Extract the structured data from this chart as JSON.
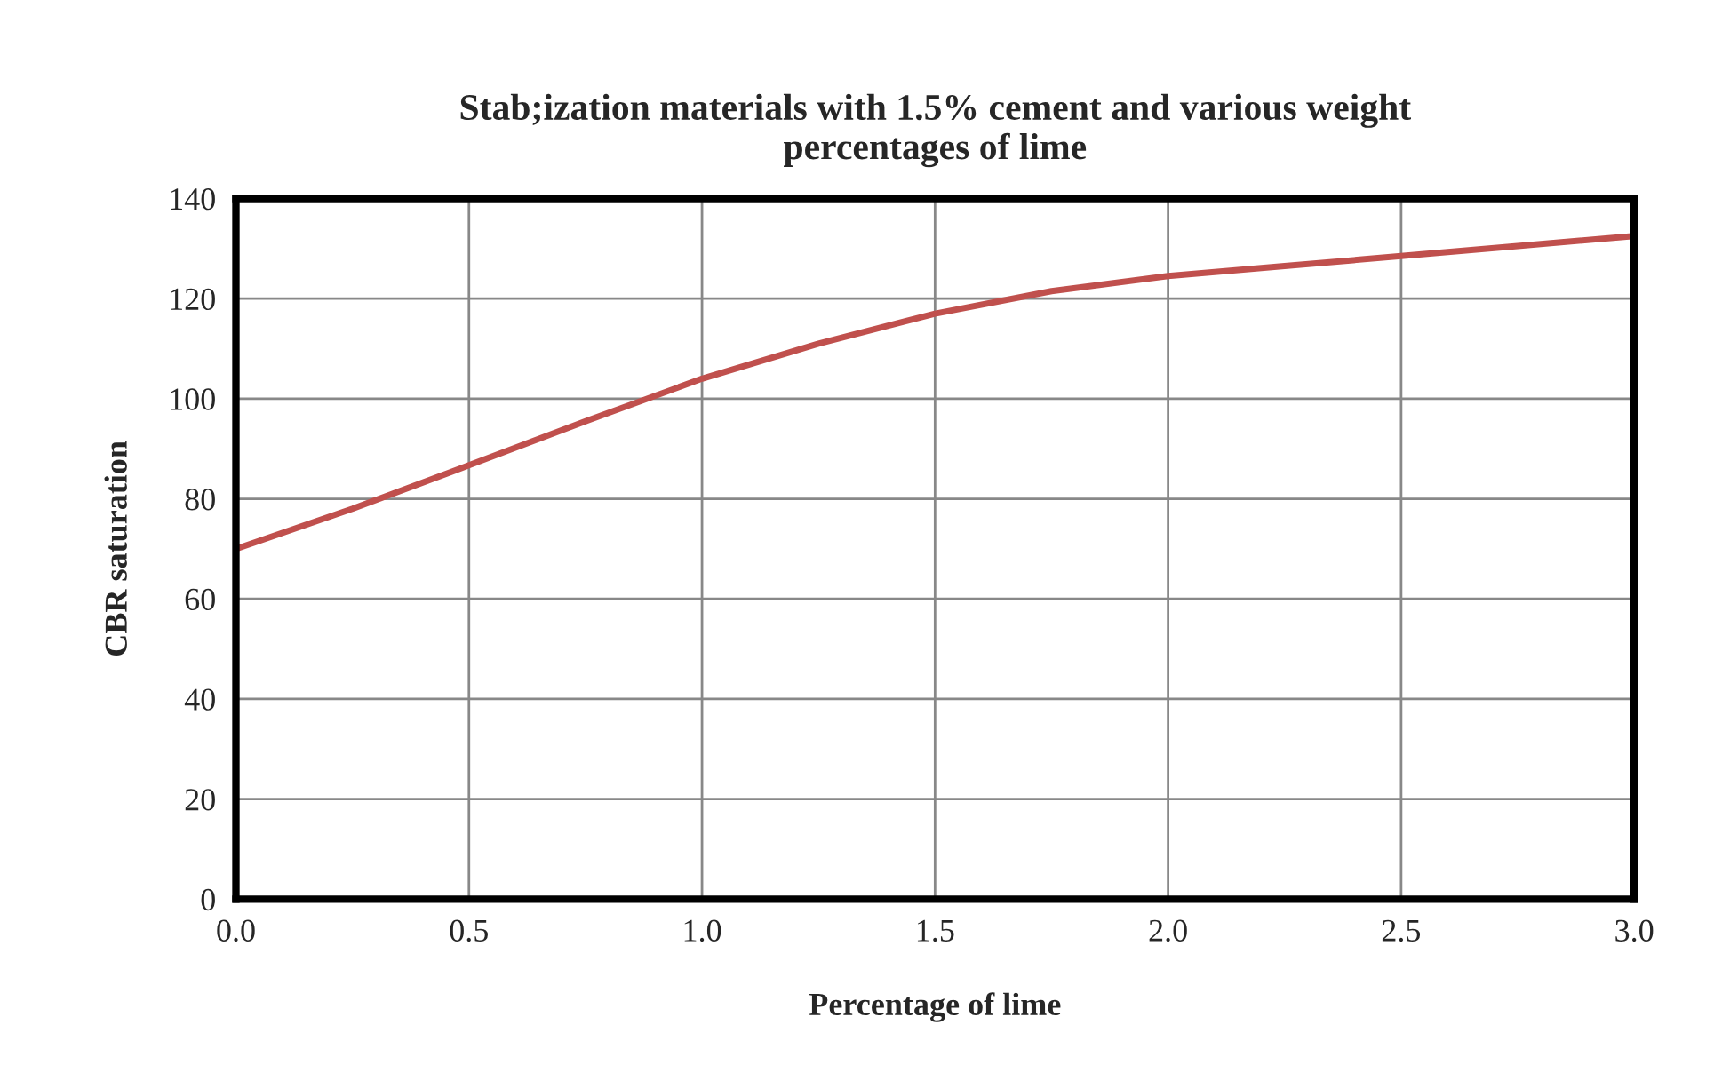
{
  "chart_data": {
    "type": "line",
    "title": "Stab;ization materials with 1.5% cement and various weight\npercentages of lime",
    "xlabel": "Percentage of lime",
    "ylabel": "CBR saturation",
    "x": [
      0,
      0.25,
      0.5,
      0.75,
      1.0,
      1.25,
      1.5,
      1.75,
      2.0,
      2.25,
      2.5,
      2.75,
      3.0
    ],
    "series": [
      {
        "color": "#c0504d",
        "values": [
          70,
          78,
          86.7,
          95.5,
          104,
          111,
          117,
          121.5,
          124.5,
          126.5,
          128.5,
          130.5,
          132.5
        ]
      }
    ],
    "xlim": [
      0,
      3
    ],
    "xticks": [
      {
        "value": 0,
        "label": "0.0"
      },
      {
        "value": 0.5,
        "label": "0.5"
      },
      {
        "value": 1,
        "label": "1.0"
      },
      {
        "value": 1.5,
        "label": "1.5"
      },
      {
        "value": 2,
        "label": "2.0"
      },
      {
        "value": 2.5,
        "label": "2.5"
      },
      {
        "value": 3,
        "label": "3.0"
      }
    ],
    "ylim": [
      0,
      140
    ],
    "yticks": [
      0,
      20,
      40,
      60,
      80,
      100,
      120,
      140
    ],
    "grid": true
  }
}
